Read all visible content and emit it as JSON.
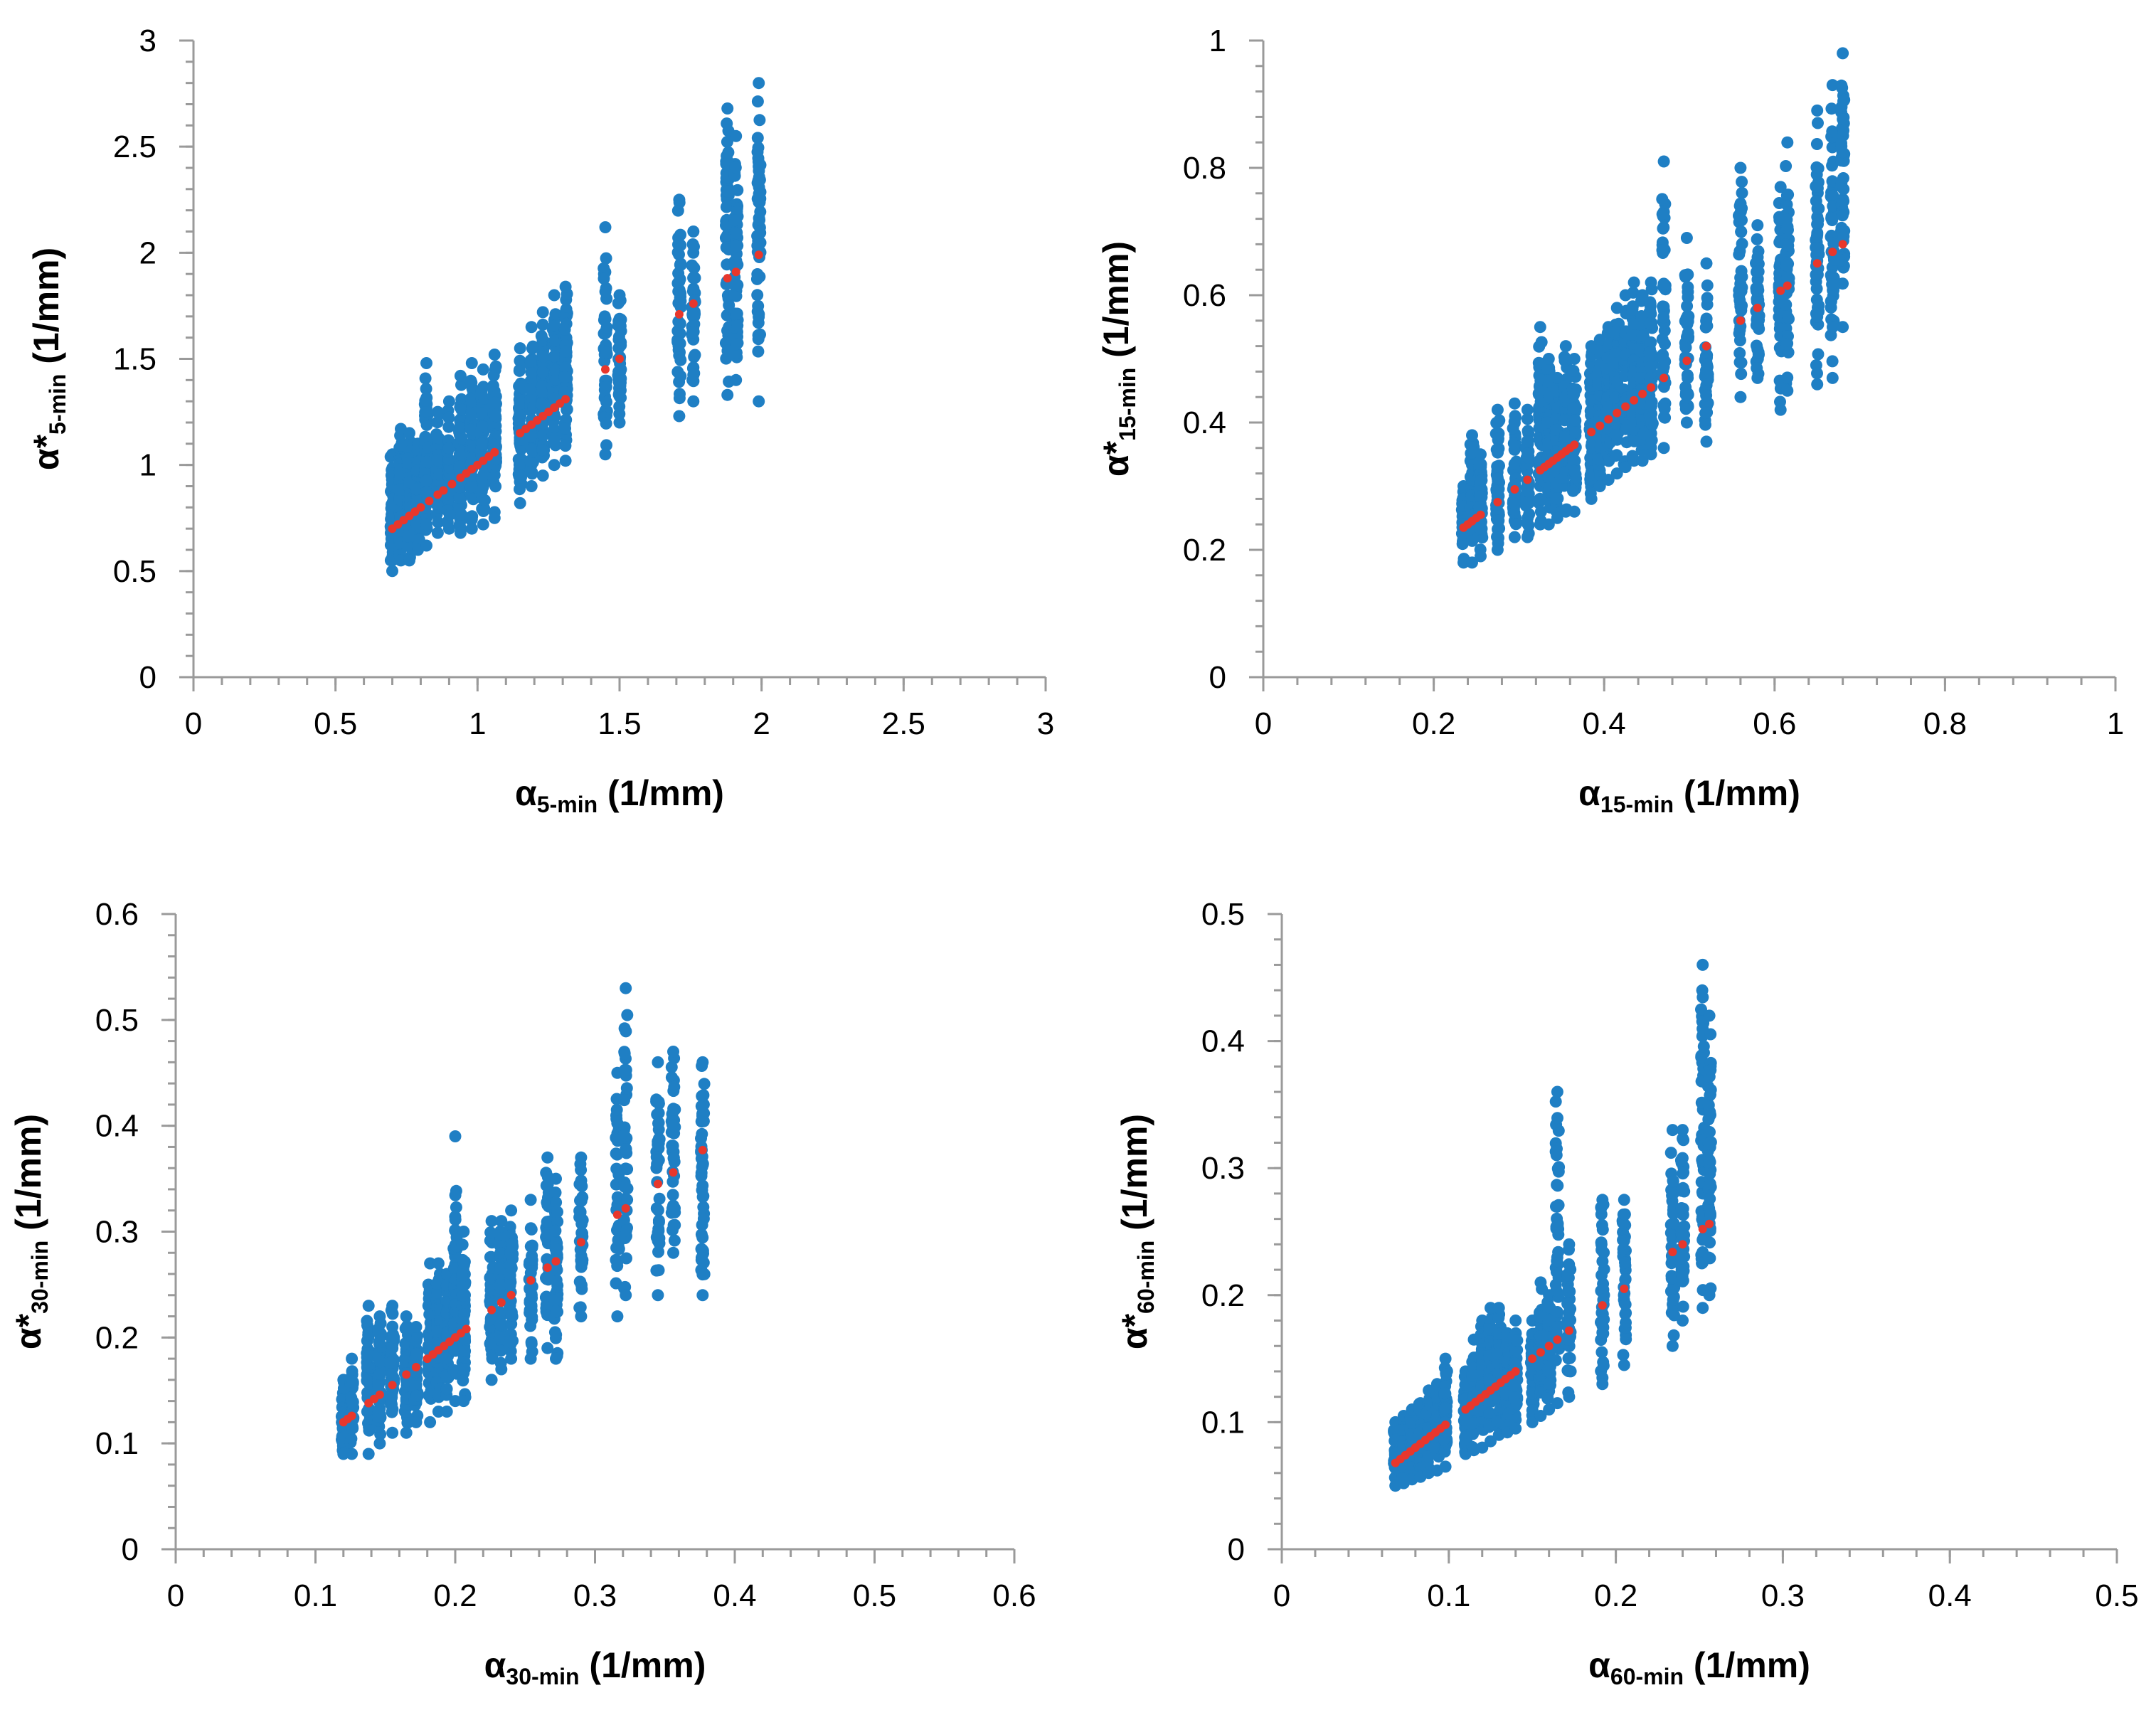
{
  "colors": {
    "scatter": "#1f7fc4",
    "fit": "#e8372c",
    "axis": "#9a9a9a"
  },
  "chart_data": [
    {
      "type": "scatter",
      "xlabel": "α5-min (1/mm)",
      "ylabel": "α*5-min (1/mm)",
      "x_symbol": "α",
      "x_sub": "5-min",
      "y_symbol": "α*",
      "y_sub": "5-min",
      "units": "(1/mm)",
      "xlim": [
        0,
        3
      ],
      "ylim": [
        0,
        3
      ],
      "xticks": [
        0,
        0.5,
        1,
        1.5,
        2,
        2.5,
        3
      ],
      "xtick_labels": [
        "0",
        "0.5",
        "1",
        "1.5",
        "2",
        "2.5",
        "3"
      ],
      "yticks": [
        0,
        0.5,
        1,
        1.5,
        2,
        2.5,
        3
      ],
      "ytick_labels": [
        "0",
        "0.5",
        "1",
        "1.5",
        "2",
        "2.5",
        "3"
      ],
      "x_minor_step": 0.1,
      "y_minor_step": 0.1,
      "groups": [
        {
          "x": 0.7,
          "ymin": 0.5,
          "ymax": 1.05,
          "n": 60
        },
        {
          "x": 0.73,
          "ymin": 0.55,
          "ymax": 1.17,
          "n": 55
        },
        {
          "x": 0.76,
          "ymin": 0.55,
          "ymax": 1.15,
          "n": 55
        },
        {
          "x": 0.79,
          "ymin": 0.6,
          "ymax": 1.1,
          "n": 55
        },
        {
          "x": 0.82,
          "ymin": 0.62,
          "ymax": 1.48,
          "n": 60
        },
        {
          "x": 0.86,
          "ymin": 0.68,
          "ymax": 1.25,
          "n": 55
        },
        {
          "x": 0.9,
          "ymin": 0.7,
          "ymax": 1.3,
          "n": 55
        },
        {
          "x": 0.94,
          "ymin": 0.68,
          "ymax": 1.42,
          "n": 60
        },
        {
          "x": 0.98,
          "ymin": 0.7,
          "ymax": 1.48,
          "n": 60
        },
        {
          "x": 1.02,
          "ymin": 0.72,
          "ymax": 1.45,
          "n": 60
        },
        {
          "x": 1.06,
          "ymin": 0.75,
          "ymax": 1.52,
          "n": 60
        },
        {
          "x": 1.15,
          "ymin": 0.82,
          "ymax": 1.55,
          "n": 60
        },
        {
          "x": 1.19,
          "ymin": 0.9,
          "ymax": 1.65,
          "n": 60
        },
        {
          "x": 1.23,
          "ymin": 0.95,
          "ymax": 1.72,
          "n": 60
        },
        {
          "x": 1.27,
          "ymin": 1.0,
          "ymax": 1.8,
          "n": 60
        },
        {
          "x": 1.31,
          "ymin": 1.02,
          "ymax": 1.84,
          "n": 60
        },
        {
          "x": 1.45,
          "ymin": 1.05,
          "ymax": 2.12,
          "n": 45
        },
        {
          "x": 1.5,
          "ymin": 1.2,
          "ymax": 1.8,
          "n": 40
        },
        {
          "x": 1.71,
          "ymin": 1.23,
          "ymax": 2.25,
          "n": 40
        },
        {
          "x": 1.76,
          "ymin": 1.3,
          "ymax": 2.1,
          "n": 35
        },
        {
          "x": 1.88,
          "ymin": 1.33,
          "ymax": 2.68,
          "n": 55
        },
        {
          "x": 1.91,
          "ymin": 1.4,
          "ymax": 2.55,
          "n": 55
        },
        {
          "x": 1.99,
          "ymin": 1.3,
          "ymax": 2.8,
          "n": 50
        }
      ],
      "fit_x": [
        0.7,
        0.72,
        0.74,
        0.76,
        0.78,
        0.8,
        0.83,
        0.86,
        0.88,
        0.91,
        0.94,
        0.96,
        0.98,
        1.0,
        1.02,
        1.04,
        1.06,
        1.15,
        1.17,
        1.19,
        1.21,
        1.23,
        1.25,
        1.27,
        1.29,
        1.31,
        1.45,
        1.5,
        1.71,
        1.76,
        1.88,
        1.91,
        1.99
      ]
    },
    {
      "type": "scatter",
      "xlabel": "α15-min (1/mm)",
      "ylabel": "α*15-min (1/mm)",
      "x_symbol": "α",
      "x_sub": "15-min",
      "y_symbol": "α*",
      "y_sub": "15-min",
      "units": "(1/mm)",
      "xlim": [
        0,
        1
      ],
      "ylim": [
        0,
        1
      ],
      "xticks": [
        0,
        0.2,
        0.4,
        0.6,
        0.8,
        1
      ],
      "xtick_labels": [
        "0",
        "0.2",
        "0.4",
        "0.6",
        "0.8",
        "1"
      ],
      "yticks": [
        0,
        0.2,
        0.4,
        0.6,
        0.8,
        1
      ],
      "ytick_labels": [
        "0",
        "0.2",
        "0.4",
        "0.6",
        "0.8",
        "1"
      ],
      "x_minor_step": 0.04,
      "y_minor_step": 0.04,
      "groups": [
        {
          "x": 0.235,
          "ymin": 0.18,
          "ymax": 0.3,
          "n": 45
        },
        {
          "x": 0.245,
          "ymin": 0.18,
          "ymax": 0.38,
          "n": 45
        },
        {
          "x": 0.255,
          "ymin": 0.19,
          "ymax": 0.35,
          "n": 45
        },
        {
          "x": 0.275,
          "ymin": 0.2,
          "ymax": 0.42,
          "n": 45
        },
        {
          "x": 0.295,
          "ymin": 0.22,
          "ymax": 0.43,
          "n": 45
        },
        {
          "x": 0.31,
          "ymin": 0.22,
          "ymax": 0.42,
          "n": 45
        },
        {
          "x": 0.325,
          "ymin": 0.24,
          "ymax": 0.55,
          "n": 50
        },
        {
          "x": 0.335,
          "ymin": 0.24,
          "ymax": 0.5,
          "n": 50
        },
        {
          "x": 0.345,
          "ymin": 0.25,
          "ymax": 0.47,
          "n": 50
        },
        {
          "x": 0.355,
          "ymin": 0.26,
          "ymax": 0.52,
          "n": 50
        },
        {
          "x": 0.365,
          "ymin": 0.26,
          "ymax": 0.5,
          "n": 50
        },
        {
          "x": 0.385,
          "ymin": 0.28,
          "ymax": 0.52,
          "n": 50
        },
        {
          "x": 0.395,
          "ymin": 0.3,
          "ymax": 0.53,
          "n": 50
        },
        {
          "x": 0.405,
          "ymin": 0.31,
          "ymax": 0.55,
          "n": 50
        },
        {
          "x": 0.415,
          "ymin": 0.32,
          "ymax": 0.58,
          "n": 50
        },
        {
          "x": 0.425,
          "ymin": 0.33,
          "ymax": 0.6,
          "n": 50
        },
        {
          "x": 0.435,
          "ymin": 0.34,
          "ymax": 0.62,
          "n": 50
        },
        {
          "x": 0.445,
          "ymin": 0.34,
          "ymax": 0.6,
          "n": 50
        },
        {
          "x": 0.455,
          "ymin": 0.35,
          "ymax": 0.62,
          "n": 50
        },
        {
          "x": 0.47,
          "ymin": 0.36,
          "ymax": 0.81,
          "n": 45
        },
        {
          "x": 0.497,
          "ymin": 0.4,
          "ymax": 0.69,
          "n": 40
        },
        {
          "x": 0.52,
          "ymin": 0.37,
          "ymax": 0.65,
          "n": 40
        },
        {
          "x": 0.56,
          "ymin": 0.44,
          "ymax": 0.8,
          "n": 40
        },
        {
          "x": 0.58,
          "ymin": 0.47,
          "ymax": 0.71,
          "n": 40
        },
        {
          "x": 0.607,
          "ymin": 0.42,
          "ymax": 0.77,
          "n": 45
        },
        {
          "x": 0.615,
          "ymin": 0.45,
          "ymax": 0.84,
          "n": 45
        },
        {
          "x": 0.65,
          "ymin": 0.46,
          "ymax": 0.89,
          "n": 50
        },
        {
          "x": 0.668,
          "ymin": 0.47,
          "ymax": 0.93,
          "n": 50
        },
        {
          "x": 0.68,
          "ymin": 0.55,
          "ymax": 0.98,
          "n": 50
        }
      ],
      "fit_x": [
        0.235,
        0.24,
        0.245,
        0.25,
        0.255,
        0.275,
        0.295,
        0.31,
        0.325,
        0.33,
        0.335,
        0.34,
        0.345,
        0.35,
        0.355,
        0.36,
        0.365,
        0.385,
        0.395,
        0.405,
        0.415,
        0.425,
        0.435,
        0.445,
        0.455,
        0.47,
        0.497,
        0.52,
        0.56,
        0.58,
        0.607,
        0.615,
        0.65,
        0.668,
        0.68
      ]
    },
    {
      "type": "scatter",
      "xlabel": "α30-min (1/mm)",
      "ylabel": "α*30-min (1/mm)",
      "x_symbol": "α",
      "x_sub": "30-min",
      "y_symbol": "α*",
      "y_sub": "30-min",
      "units": "(1/mm)",
      "xlim": [
        0,
        0.6
      ],
      "ylim": [
        0,
        0.6
      ],
      "xticks": [
        0,
        0.1,
        0.2,
        0.3,
        0.4,
        0.5,
        0.6
      ],
      "xtick_labels": [
        "0",
        "0.1",
        "0.2",
        "0.3",
        "0.4",
        "0.5",
        "0.6"
      ],
      "yticks": [
        0,
        0.1,
        0.2,
        0.3,
        0.4,
        0.5,
        0.6
      ],
      "ytick_labels": [
        "0",
        "0.1",
        "0.2",
        "0.3",
        "0.4",
        "0.5",
        "0.6"
      ],
      "x_minor_step": 0.02,
      "y_minor_step": 0.02,
      "groups": [
        {
          "x": 0.12,
          "ymin": 0.09,
          "ymax": 0.16,
          "n": 45
        },
        {
          "x": 0.126,
          "ymin": 0.09,
          "ymax": 0.18,
          "n": 45
        },
        {
          "x": 0.138,
          "ymin": 0.09,
          "ymax": 0.23,
          "n": 45
        },
        {
          "x": 0.146,
          "ymin": 0.1,
          "ymax": 0.22,
          "n": 45
        },
        {
          "x": 0.155,
          "ymin": 0.11,
          "ymax": 0.23,
          "n": 45
        },
        {
          "x": 0.165,
          "ymin": 0.11,
          "ymax": 0.22,
          "n": 45
        },
        {
          "x": 0.172,
          "ymin": 0.12,
          "ymax": 0.21,
          "n": 45
        },
        {
          "x": 0.182,
          "ymin": 0.12,
          "ymax": 0.27,
          "n": 50
        },
        {
          "x": 0.188,
          "ymin": 0.13,
          "ymax": 0.27,
          "n": 50
        },
        {
          "x": 0.194,
          "ymin": 0.13,
          "ymax": 0.26,
          "n": 50
        },
        {
          "x": 0.2,
          "ymin": 0.14,
          "ymax": 0.39,
          "n": 50
        },
        {
          "x": 0.206,
          "ymin": 0.14,
          "ymax": 0.3,
          "n": 50
        },
        {
          "x": 0.226,
          "ymin": 0.16,
          "ymax": 0.31,
          "n": 45
        },
        {
          "x": 0.233,
          "ymin": 0.17,
          "ymax": 0.31,
          "n": 45
        },
        {
          "x": 0.24,
          "ymin": 0.18,
          "ymax": 0.32,
          "n": 45
        },
        {
          "x": 0.254,
          "ymin": 0.18,
          "ymax": 0.33,
          "n": 40
        },
        {
          "x": 0.266,
          "ymin": 0.19,
          "ymax": 0.37,
          "n": 40
        },
        {
          "x": 0.272,
          "ymin": 0.18,
          "ymax": 0.35,
          "n": 40
        },
        {
          "x": 0.29,
          "ymin": 0.22,
          "ymax": 0.37,
          "n": 35
        },
        {
          "x": 0.316,
          "ymin": 0.22,
          "ymax": 0.45,
          "n": 40
        },
        {
          "x": 0.322,
          "ymin": 0.24,
          "ymax": 0.53,
          "n": 40
        },
        {
          "x": 0.345,
          "ymin": 0.24,
          "ymax": 0.46,
          "n": 40
        },
        {
          "x": 0.356,
          "ymin": 0.28,
          "ymax": 0.47,
          "n": 40
        },
        {
          "x": 0.377,
          "ymin": 0.24,
          "ymax": 0.46,
          "n": 45
        }
      ],
      "fit_x": [
        0.12,
        0.123,
        0.126,
        0.138,
        0.142,
        0.146,
        0.155,
        0.165,
        0.172,
        0.18,
        0.184,
        0.188,
        0.192,
        0.196,
        0.2,
        0.204,
        0.208,
        0.226,
        0.233,
        0.24,
        0.254,
        0.266,
        0.272,
        0.29,
        0.316,
        0.322,
        0.345,
        0.356,
        0.377
      ]
    },
    {
      "type": "scatter",
      "xlabel": "α60-min (1/mm)",
      "ylabel": "α*60-min (1/mm)",
      "x_symbol": "α",
      "x_sub": "60-min",
      "y_symbol": "α*",
      "y_sub": "60-min",
      "units": "(1/mm)",
      "xlim": [
        0,
        0.5
      ],
      "ylim": [
        0,
        0.5
      ],
      "xticks": [
        0,
        0.1,
        0.2,
        0.3,
        0.4,
        0.5
      ],
      "xtick_labels": [
        "0",
        "0.1",
        "0.2",
        "0.3",
        "0.4",
        "0.5"
      ],
      "yticks": [
        0,
        0.1,
        0.2,
        0.3,
        0.4,
        0.5
      ],
      "ytick_labels": [
        "0",
        "0.1",
        "0.2",
        "0.3",
        "0.4",
        "0.5"
      ],
      "x_minor_step": 0.02,
      "y_minor_step": 0.02,
      "groups": [
        {
          "x": 0.068,
          "ymin": 0.05,
          "ymax": 0.1,
          "n": 40
        },
        {
          "x": 0.073,
          "ymin": 0.052,
          "ymax": 0.105,
          "n": 40
        },
        {
          "x": 0.078,
          "ymin": 0.055,
          "ymax": 0.11,
          "n": 40
        },
        {
          "x": 0.083,
          "ymin": 0.057,
          "ymax": 0.115,
          "n": 40
        },
        {
          "x": 0.088,
          "ymin": 0.06,
          "ymax": 0.125,
          "n": 40
        },
        {
          "x": 0.093,
          "ymin": 0.062,
          "ymax": 0.13,
          "n": 40
        },
        {
          "x": 0.098,
          "ymin": 0.065,
          "ymax": 0.15,
          "n": 40
        },
        {
          "x": 0.11,
          "ymin": 0.075,
          "ymax": 0.14,
          "n": 45
        },
        {
          "x": 0.115,
          "ymin": 0.078,
          "ymax": 0.165,
          "n": 45
        },
        {
          "x": 0.12,
          "ymin": 0.08,
          "ymax": 0.18,
          "n": 45
        },
        {
          "x": 0.125,
          "ymin": 0.085,
          "ymax": 0.19,
          "n": 45
        },
        {
          "x": 0.13,
          "ymin": 0.09,
          "ymax": 0.19,
          "n": 45
        },
        {
          "x": 0.135,
          "ymin": 0.092,
          "ymax": 0.17,
          "n": 45
        },
        {
          "x": 0.14,
          "ymin": 0.095,
          "ymax": 0.18,
          "n": 45
        },
        {
          "x": 0.15,
          "ymin": 0.1,
          "ymax": 0.18,
          "n": 40
        },
        {
          "x": 0.155,
          "ymin": 0.105,
          "ymax": 0.21,
          "n": 40
        },
        {
          "x": 0.16,
          "ymin": 0.11,
          "ymax": 0.2,
          "n": 40
        },
        {
          "x": 0.165,
          "ymin": 0.115,
          "ymax": 0.36,
          "n": 45
        },
        {
          "x": 0.172,
          "ymin": 0.12,
          "ymax": 0.24,
          "n": 40
        },
        {
          "x": 0.192,
          "ymin": 0.13,
          "ymax": 0.275,
          "n": 35
        },
        {
          "x": 0.205,
          "ymin": 0.145,
          "ymax": 0.275,
          "n": 35
        },
        {
          "x": 0.234,
          "ymin": 0.16,
          "ymax": 0.33,
          "n": 40
        },
        {
          "x": 0.24,
          "ymin": 0.18,
          "ymax": 0.33,
          "n": 40
        },
        {
          "x": 0.252,
          "ymin": 0.19,
          "ymax": 0.46,
          "n": 50
        },
        {
          "x": 0.256,
          "ymin": 0.2,
          "ymax": 0.42,
          "n": 45
        }
      ],
      "fit_x": [
        0.068,
        0.071,
        0.074,
        0.077,
        0.08,
        0.083,
        0.086,
        0.089,
        0.092,
        0.095,
        0.098,
        0.11,
        0.113,
        0.116,
        0.119,
        0.122,
        0.125,
        0.128,
        0.131,
        0.134,
        0.137,
        0.14,
        0.15,
        0.155,
        0.16,
        0.165,
        0.172,
        0.192,
        0.205,
        0.234,
        0.24,
        0.252,
        0.256
      ]
    }
  ]
}
